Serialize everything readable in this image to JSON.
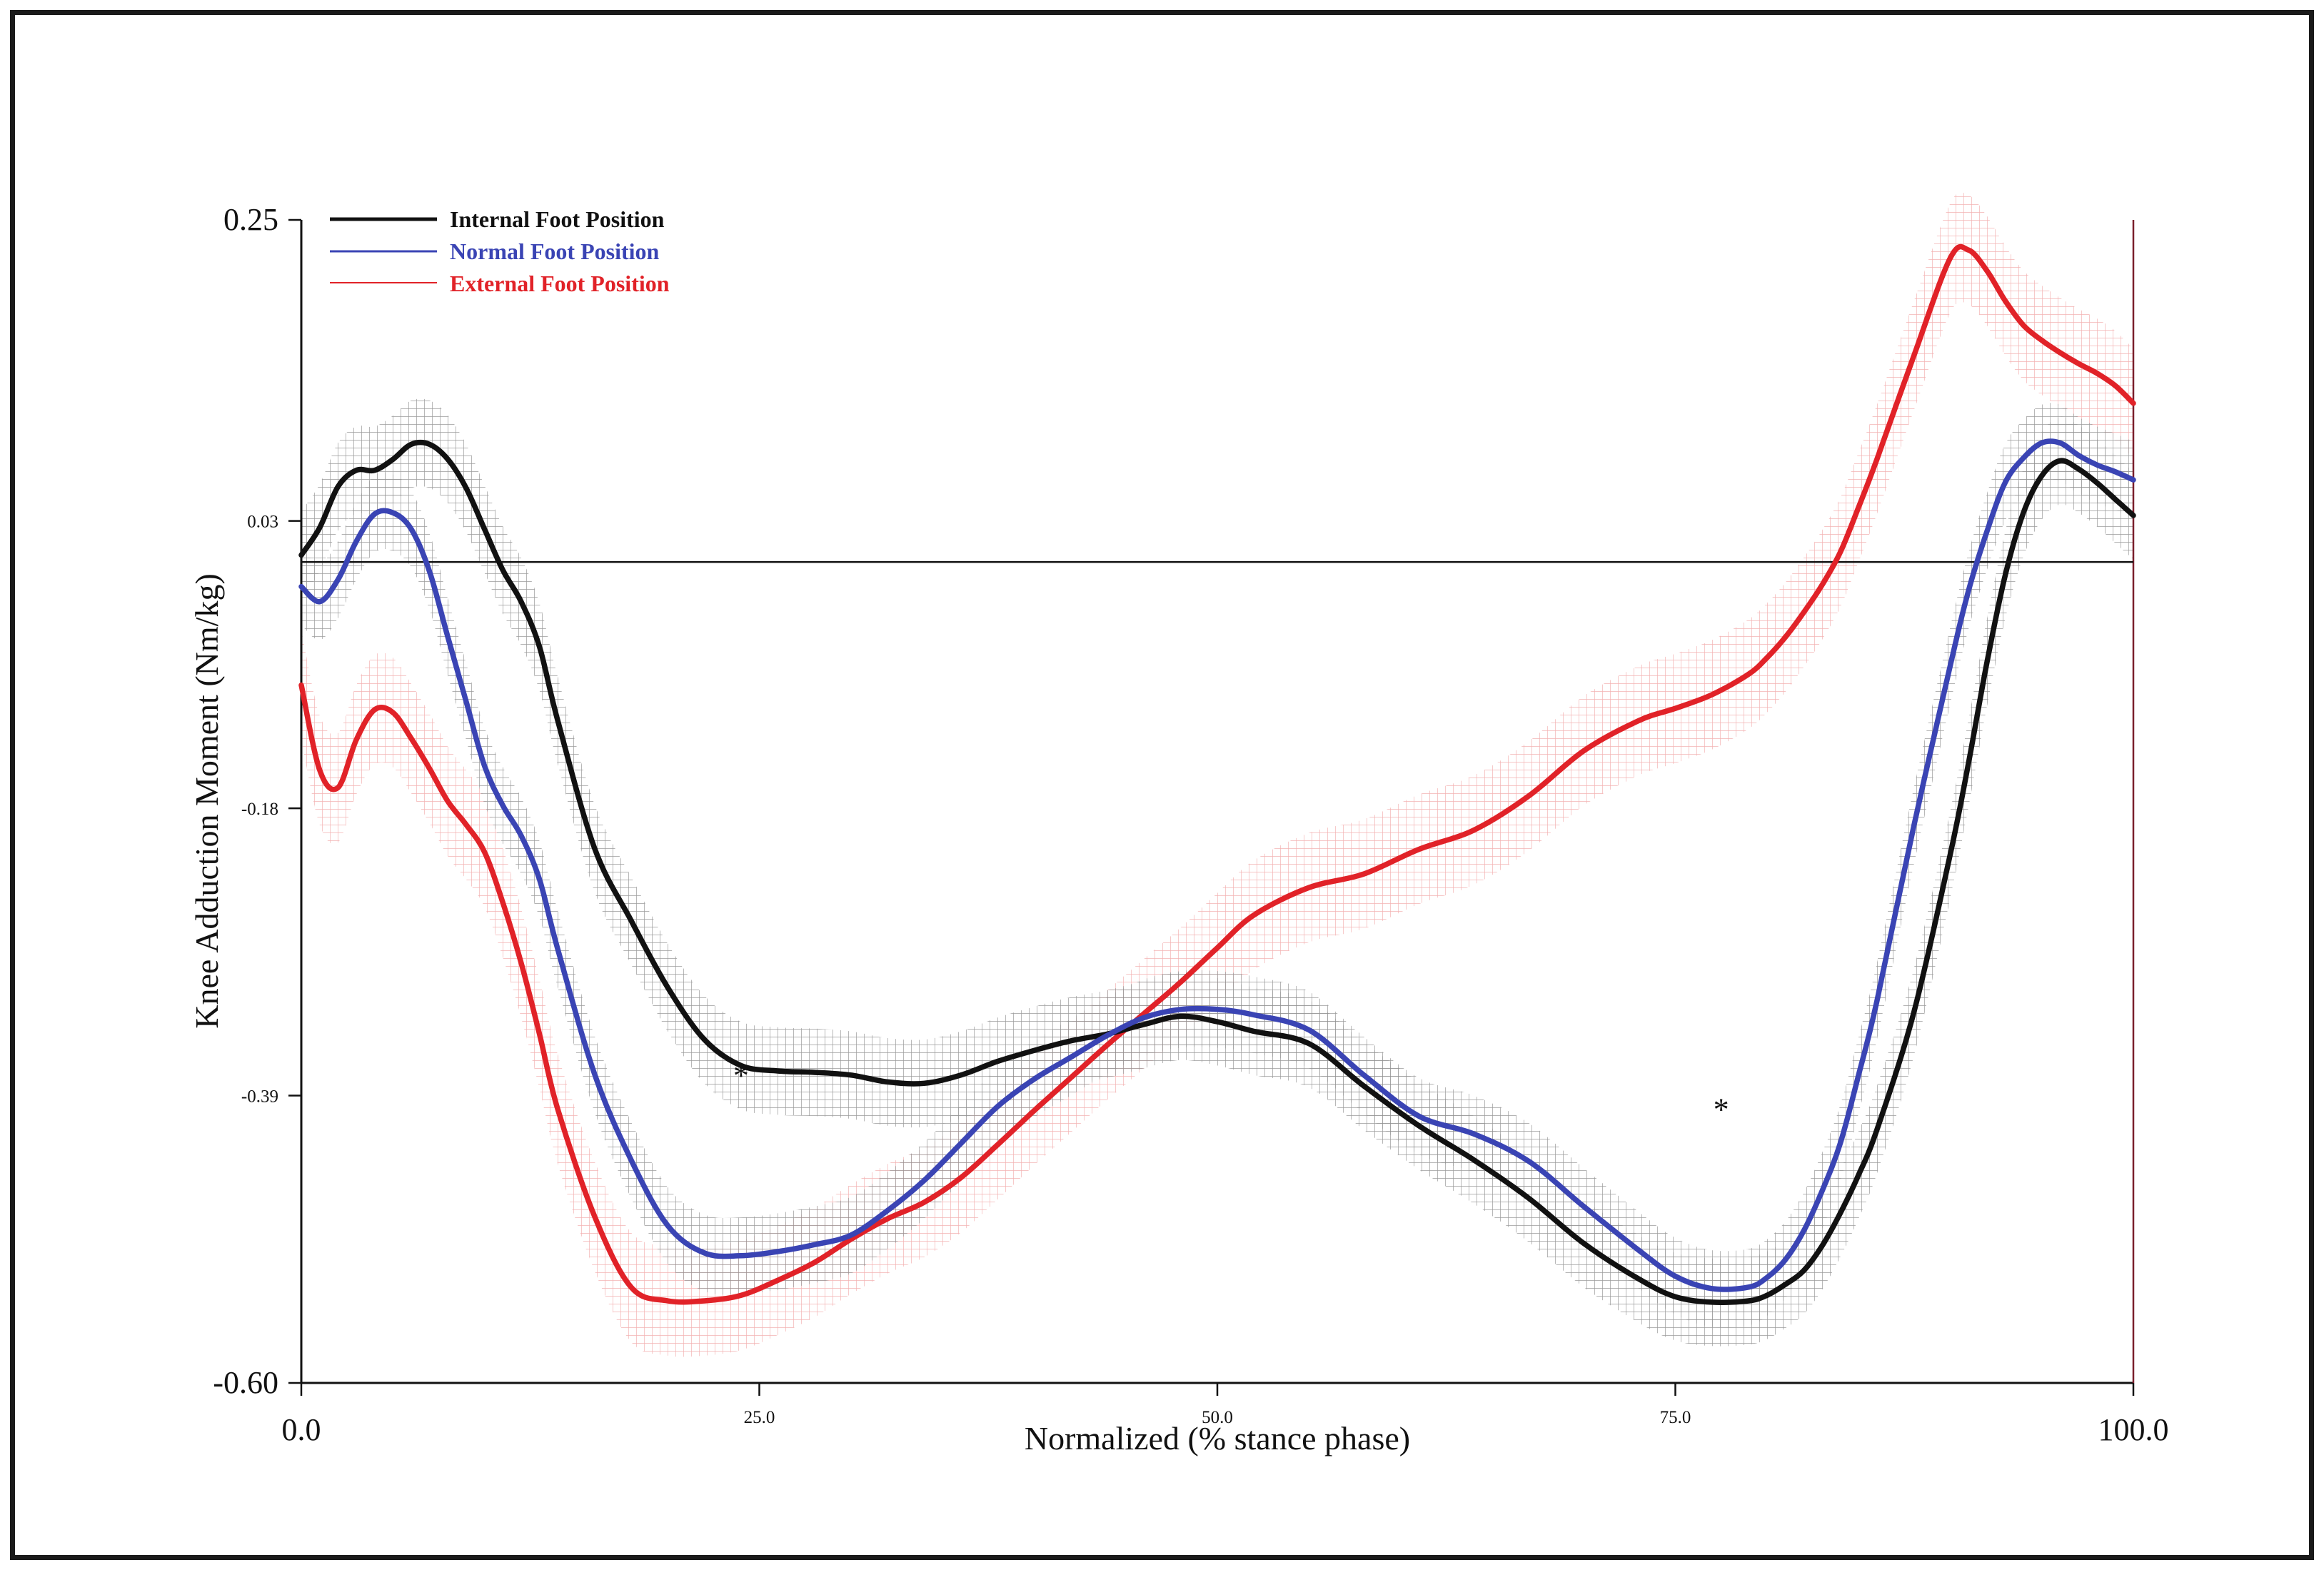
{
  "chart_data": {
    "type": "line",
    "title": "",
    "xlabel": "Normalized (% stance phase)",
    "ylabel": "Knee Adduction Moment (Nm/kg)",
    "xlim": [
      0,
      100
    ],
    "ylim": [
      -0.6,
      0.25
    ],
    "x_ticks": [
      {
        "value": 0,
        "label": "0.0",
        "size": "large"
      },
      {
        "value": 25,
        "label": "25.0",
        "size": "small"
      },
      {
        "value": 50,
        "label": "50.0",
        "size": "small"
      },
      {
        "value": 75,
        "label": "75.0",
        "size": "small"
      },
      {
        "value": 100,
        "label": "100.0",
        "size": "large"
      }
    ],
    "y_ticks": [
      {
        "value": 0.25,
        "label": "0.25",
        "size": "large"
      },
      {
        "value": 0.03,
        "label": "0.03",
        "size": "small"
      },
      {
        "value": -0.18,
        "label": "-0.18",
        "size": "small"
      },
      {
        "value": -0.39,
        "label": "-0.39",
        "size": "small"
      },
      {
        "value": -0.6,
        "label": "-0.60",
        "size": "large"
      }
    ],
    "zero_line": 0,
    "grid": false,
    "legend_position": "top-left",
    "annotations": [
      {
        "text": "*",
        "x": 24,
        "y": -0.375
      },
      {
        "text": "*",
        "x": 77.5,
        "y": -0.4
      }
    ],
    "series": [
      {
        "name": "Internal Foot Position",
        "color": "#111111",
        "band_color": "#8f8f8f",
        "band": 0.032,
        "x": [
          0,
          1,
          2,
          3,
          4,
          5,
          6,
          7,
          8,
          9,
          10,
          11,
          12,
          13,
          14,
          16,
          18,
          20,
          22,
          24,
          26,
          28,
          30,
          32,
          34,
          36,
          38,
          40,
          42,
          44,
          46,
          48,
          50,
          52,
          55,
          58,
          61,
          64,
          67,
          70,
          73,
          75,
          77,
          79,
          80,
          81,
          82,
          83,
          84,
          85,
          86,
          88,
          90,
          91,
          92,
          93,
          94,
          95,
          96,
          97,
          98,
          99,
          100
        ],
        "y": [
          0.005,
          0.025,
          0.055,
          0.067,
          0.067,
          0.075,
          0.086,
          0.086,
          0.075,
          0.054,
          0.024,
          -0.006,
          -0.029,
          -0.062,
          -0.116,
          -0.209,
          -0.262,
          -0.311,
          -0.349,
          -0.368,
          -0.372,
          -0.373,
          -0.375,
          -0.38,
          -0.381,
          -0.375,
          -0.365,
          -0.357,
          -0.35,
          -0.345,
          -0.338,
          -0.332,
          -0.336,
          -0.343,
          -0.352,
          -0.383,
          -0.412,
          -0.437,
          -0.465,
          -0.498,
          -0.524,
          -0.537,
          -0.541,
          -0.54,
          -0.536,
          -0.528,
          -0.518,
          -0.5,
          -0.476,
          -0.448,
          -0.415,
          -0.33,
          -0.214,
          -0.147,
          -0.074,
          -0.01,
          0.036,
          0.063,
          0.074,
          0.068,
          0.058,
          0.046,
          0.034
        ]
      },
      {
        "name": "Normal Foot Position",
        "color": "#3a44b4",
        "band_color": "#8f8f8f",
        "band": 0.028,
        "x": [
          0,
          1,
          2,
          3,
          4,
          5,
          6,
          7,
          8,
          9,
          10,
          11,
          12,
          13,
          14,
          16,
          18,
          20,
          22,
          24,
          26,
          28,
          30,
          32,
          34,
          36,
          38,
          40,
          42,
          44,
          46,
          48,
          50,
          52,
          55,
          58,
          61,
          64,
          67,
          70,
          73,
          75,
          77,
          79,
          80,
          81,
          82,
          83,
          84,
          85,
          86,
          88,
          90,
          91,
          92,
          93,
          94,
          95,
          96,
          97,
          98,
          99,
          100
        ],
        "y": [
          -0.018,
          -0.029,
          -0.013,
          0.015,
          0.035,
          0.036,
          0.024,
          -0.007,
          -0.055,
          -0.102,
          -0.149,
          -0.178,
          -0.2,
          -0.232,
          -0.283,
          -0.374,
          -0.437,
          -0.485,
          -0.505,
          -0.507,
          -0.504,
          -0.499,
          -0.492,
          -0.474,
          -0.452,
          -0.425,
          -0.398,
          -0.378,
          -0.362,
          -0.346,
          -0.333,
          -0.327,
          -0.327,
          -0.331,
          -0.342,
          -0.375,
          -0.405,
          -0.418,
          -0.438,
          -0.471,
          -0.503,
          -0.522,
          -0.531,
          -0.53,
          -0.523,
          -0.51,
          -0.489,
          -0.46,
          -0.425,
          -0.375,
          -0.321,
          -0.194,
          -0.076,
          -0.021,
          0.022,
          0.058,
          0.076,
          0.087,
          0.087,
          0.078,
          0.071,
          0.066,
          0.06
        ]
      },
      {
        "name": "External Foot Position",
        "color": "#e12228",
        "band_color": "#f2aaaa",
        "band": 0.04,
        "x": [
          0,
          1,
          2,
          3,
          4,
          5,
          6,
          7,
          8,
          9,
          10,
          11,
          12,
          13,
          14,
          16,
          18,
          20,
          22,
          24,
          26,
          28,
          30,
          32,
          34,
          36,
          38,
          40,
          42,
          44,
          46,
          48,
          50,
          52,
          55,
          58,
          61,
          64,
          67,
          70,
          73,
          75,
          77,
          79,
          80,
          81,
          82,
          83,
          84,
          85,
          86,
          88,
          90,
          91,
          92,
          93,
          94,
          95,
          96,
          97,
          98,
          99,
          100
        ],
        "y": [
          -0.09,
          -0.152,
          -0.165,
          -0.13,
          -0.108,
          -0.11,
          -0.129,
          -0.151,
          -0.175,
          -0.192,
          -0.212,
          -0.249,
          -0.293,
          -0.345,
          -0.4,
          -0.478,
          -0.53,
          -0.54,
          -0.54,
          -0.536,
          -0.525,
          -0.512,
          -0.495,
          -0.48,
          -0.468,
          -0.45,
          -0.426,
          -0.401,
          -0.377,
          -0.353,
          -0.33,
          -0.307,
          -0.282,
          -0.258,
          -0.238,
          -0.228,
          -0.21,
          -0.196,
          -0.171,
          -0.138,
          -0.116,
          -0.107,
          -0.097,
          -0.082,
          -0.07,
          -0.055,
          -0.037,
          -0.017,
          0.007,
          0.04,
          0.075,
          0.15,
          0.222,
          0.228,
          0.213,
          0.191,
          0.173,
          0.162,
          0.153,
          0.145,
          0.138,
          0.129,
          0.116
        ]
      }
    ]
  }
}
